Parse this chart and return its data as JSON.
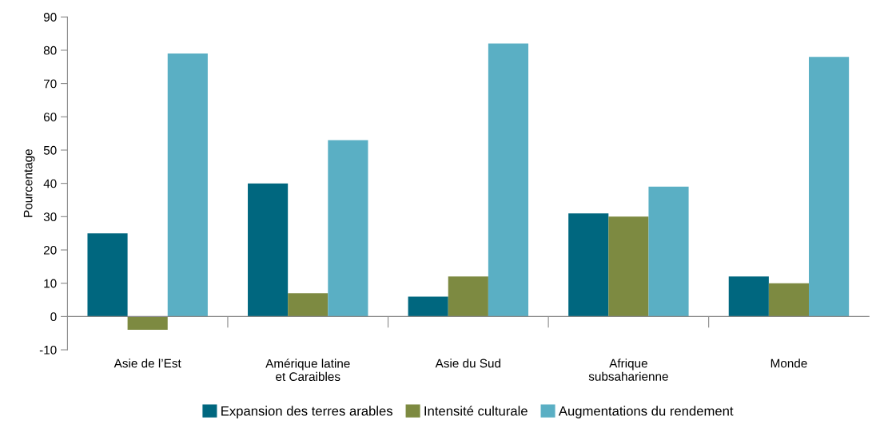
{
  "chart_data": {
    "type": "bar",
    "ylabel": "Pourcentage",
    "categories": [
      "Asie de l’Est",
      "Amérique latine\net Caraibles",
      "Asie du Sud",
      "Afrique\nsubsaharienne",
      "Monde"
    ],
    "series": [
      {
        "name": "Expansion des terres arables",
        "color": "#00677f",
        "values": [
          25,
          40,
          6,
          31,
          12
        ]
      },
      {
        "name": "Intensité culturale",
        "color": "#7d8a41",
        "values": [
          -4,
          7,
          12,
          30,
          10
        ]
      },
      {
        "name": "Augmentations du rendement",
        "color": "#5aafc4",
        "values": [
          79,
          53,
          82,
          39,
          78
        ]
      }
    ],
    "ylim": [
      -10,
      90
    ],
    "yticks": [
      -10,
      0,
      10,
      20,
      30,
      40,
      50,
      60,
      70,
      80,
      90
    ],
    "legend": "bottom"
  }
}
